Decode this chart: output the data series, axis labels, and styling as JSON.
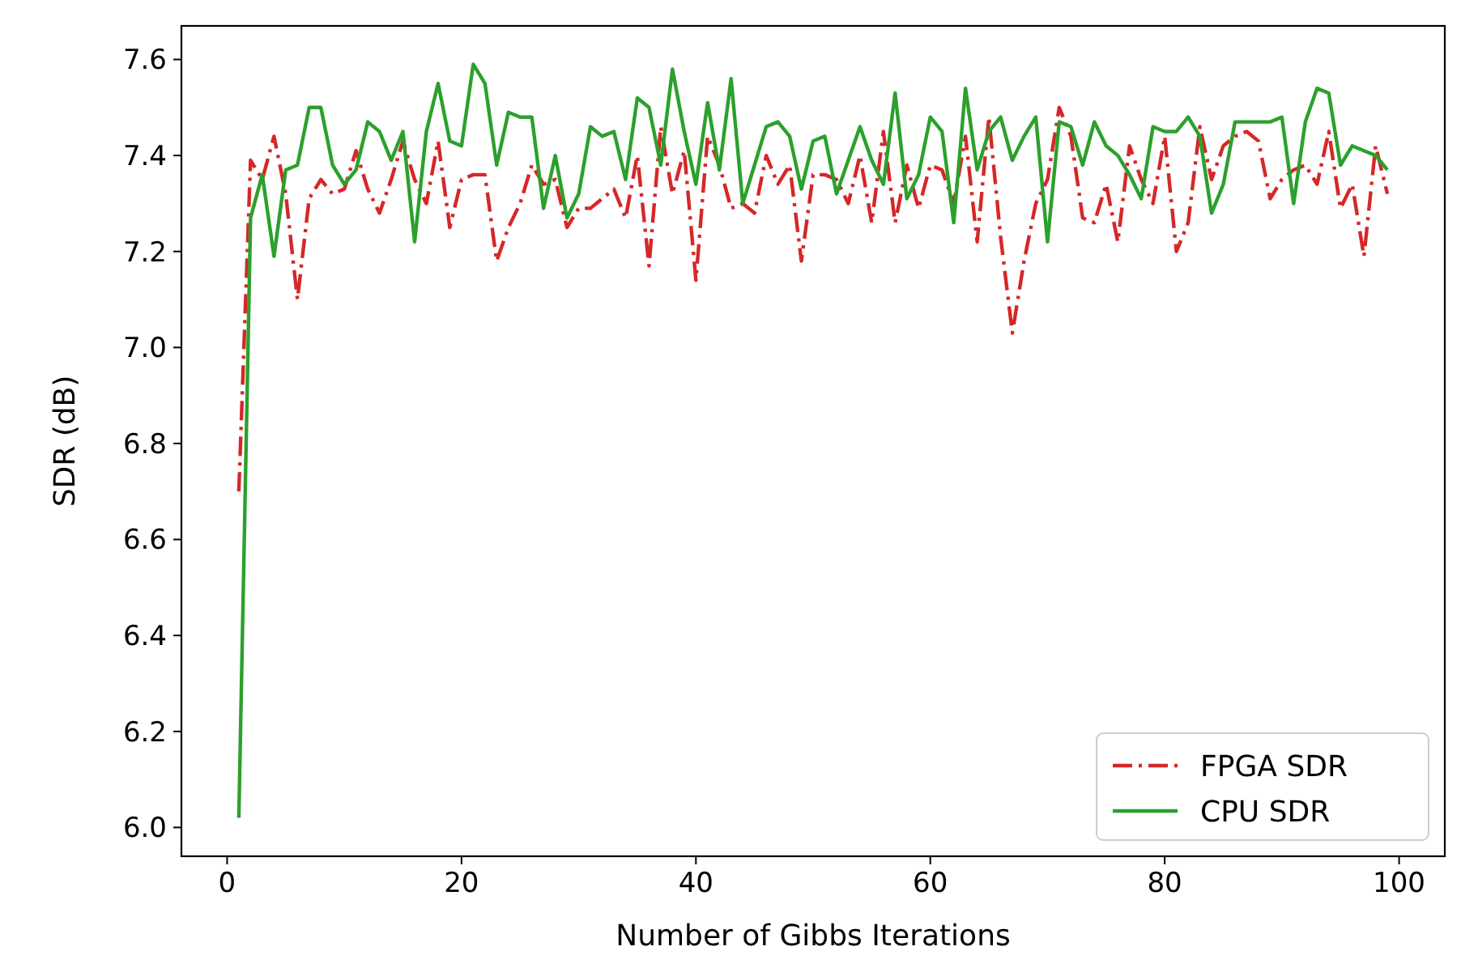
{
  "chart_data": {
    "type": "line",
    "xlabel": "Number of Gibbs Iterations",
    "ylabel": "SDR (dB)",
    "x": [
      1,
      2,
      3,
      4,
      5,
      6,
      7,
      8,
      9,
      10,
      11,
      12,
      13,
      14,
      15,
      16,
      17,
      18,
      19,
      20,
      21,
      22,
      23,
      24,
      25,
      26,
      27,
      28,
      29,
      30,
      31,
      32,
      33,
      34,
      35,
      36,
      37,
      38,
      39,
      40,
      41,
      42,
      43,
      44,
      45,
      46,
      47,
      48,
      49,
      50,
      51,
      52,
      53,
      54,
      55,
      56,
      57,
      58,
      59,
      60,
      61,
      62,
      63,
      64,
      65,
      66,
      67,
      68,
      69,
      70,
      71,
      72,
      73,
      74,
      75,
      76,
      77,
      78,
      79,
      80,
      81,
      82,
      83,
      84,
      85,
      86,
      87,
      88,
      89,
      90,
      91,
      92,
      93,
      94,
      95,
      96,
      97,
      98,
      99
    ],
    "series": [
      {
        "name": "FPGA SDR",
        "color": "#d62728",
        "line_style": "dashdot",
        "values": [
          6.7,
          7.39,
          7.35,
          7.44,
          7.32,
          7.1,
          7.31,
          7.35,
          7.32,
          7.33,
          7.41,
          7.33,
          7.28,
          7.35,
          7.43,
          7.35,
          7.3,
          7.43,
          7.25,
          7.35,
          7.36,
          7.36,
          7.18,
          7.25,
          7.3,
          7.38,
          7.34,
          7.35,
          7.25,
          7.29,
          7.29,
          7.31,
          7.33,
          7.27,
          7.4,
          7.17,
          7.46,
          7.32,
          7.41,
          7.14,
          7.44,
          7.38,
          7.29,
          7.3,
          7.28,
          7.4,
          7.34,
          7.38,
          7.18,
          7.36,
          7.36,
          7.35,
          7.3,
          7.4,
          7.26,
          7.45,
          7.26,
          7.38,
          7.29,
          7.38,
          7.37,
          7.3,
          7.44,
          7.22,
          7.48,
          7.23,
          7.03,
          7.18,
          7.3,
          7.35,
          7.5,
          7.44,
          7.27,
          7.26,
          7.34,
          7.22,
          7.42,
          7.35,
          7.3,
          7.44,
          7.2,
          7.26,
          7.46,
          7.35,
          7.42,
          7.44,
          7.45,
          7.43,
          7.31,
          7.35,
          7.37,
          7.38,
          7.34,
          7.45,
          7.29,
          7.34,
          7.19,
          7.42,
          7.32
        ]
      },
      {
        "name": "CPU SDR",
        "color": "#2ca02c",
        "line_style": "solid",
        "values": [
          6.02,
          7.27,
          7.36,
          7.19,
          7.37,
          7.38,
          7.5,
          7.5,
          7.38,
          7.34,
          7.37,
          7.47,
          7.45,
          7.39,
          7.45,
          7.22,
          7.45,
          7.55,
          7.43,
          7.42,
          7.59,
          7.55,
          7.38,
          7.49,
          7.48,
          7.48,
          7.29,
          7.4,
          7.27,
          7.32,
          7.46,
          7.44,
          7.45,
          7.35,
          7.52,
          7.5,
          7.38,
          7.58,
          7.45,
          7.34,
          7.51,
          7.37,
          7.56,
          7.3,
          7.38,
          7.46,
          7.47,
          7.44,
          7.33,
          7.43,
          7.44,
          7.32,
          7.39,
          7.46,
          7.39,
          7.34,
          7.53,
          7.31,
          7.36,
          7.48,
          7.45,
          7.26,
          7.54,
          7.37,
          7.45,
          7.48,
          7.39,
          7.44,
          7.48,
          7.22,
          7.47,
          7.46,
          7.38,
          7.47,
          7.42,
          7.4,
          7.36,
          7.31,
          7.46,
          7.45,
          7.45,
          7.48,
          7.44,
          7.28,
          7.34,
          7.47,
          7.47,
          7.47,
          7.47,
          7.48,
          7.3,
          7.47,
          7.54,
          7.53,
          7.38,
          7.42,
          7.41,
          7.4,
          7.37
        ]
      }
    ],
    "xlim": [
      -3.9,
      103.9
    ],
    "ylim": [
      5.94,
      7.67
    ],
    "xticks": [
      0,
      20,
      40,
      60,
      80,
      100
    ],
    "yticks": [
      {
        "value": 6.0,
        "label": "6.0"
      },
      {
        "value": 6.2,
        "label": "6.2"
      },
      {
        "value": 6.4,
        "label": "6.4"
      },
      {
        "value": 6.6,
        "label": "6.6"
      },
      {
        "value": 6.8,
        "label": "6.8"
      },
      {
        "value": 7.0,
        "label": "7.0"
      },
      {
        "value": 7.2,
        "label": "7.2"
      },
      {
        "value": 7.4,
        "label": "7.4"
      },
      {
        "value": 7.6,
        "label": "7.6"
      }
    ],
    "grid": false,
    "legend": "bottom right",
    "marker": "none"
  }
}
